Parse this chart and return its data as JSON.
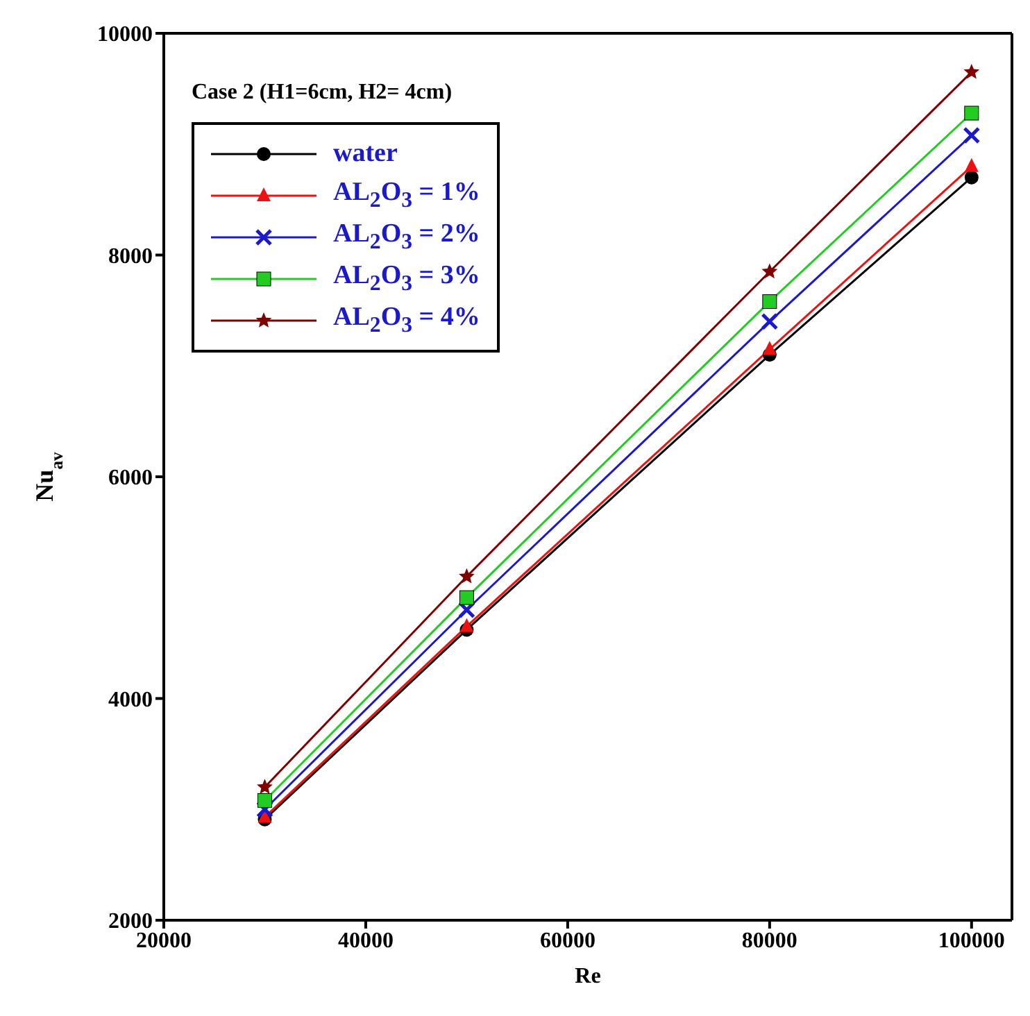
{
  "chart_data": {
    "type": "line",
    "xlabel": "Re",
    "ylabel": "Nu$_{av}$",
    "legend_title": "Case 2 (H1=6cm, H2= 4cm)",
    "x": [
      30000,
      50000,
      80000,
      100000
    ],
    "series": [
      {
        "name": "water",
        "color": "#000000",
        "marker": "circle",
        "values": [
          2910,
          4620,
          7100,
          8700
        ]
      },
      {
        "name": "AL$_{2}$O$_{3}$ = 1%",
        "color": "#ee1111",
        "marker": "triangle",
        "values": [
          2930,
          4650,
          7150,
          8800
        ]
      },
      {
        "name": "AL$_{2}$O$_{3}$ = 2%",
        "color": "#1a1acc",
        "marker": "cross",
        "values": [
          3000,
          4800,
          7400,
          9080
        ]
      },
      {
        "name": "AL$_{2}$O$_{3}$ = 3%",
        "color": "#22cc22",
        "marker": "square",
        "values": [
          3080,
          4910,
          7580,
          9280
        ]
      },
      {
        "name": "AL$_{2}$O$_{3}$ = 4%",
        "color": "#800000",
        "marker": "star",
        "values": [
          3200,
          5100,
          7850,
          9650
        ]
      }
    ],
    "xlim": [
      20000,
      104000
    ],
    "xticks": [
      20000,
      40000,
      60000,
      80000,
      100000
    ],
    "ylim": [
      2000,
      10000
    ],
    "yticks": [
      2000,
      4000,
      6000,
      8000,
      10000
    ],
    "legend": "top left",
    "line_style": "solid"
  }
}
